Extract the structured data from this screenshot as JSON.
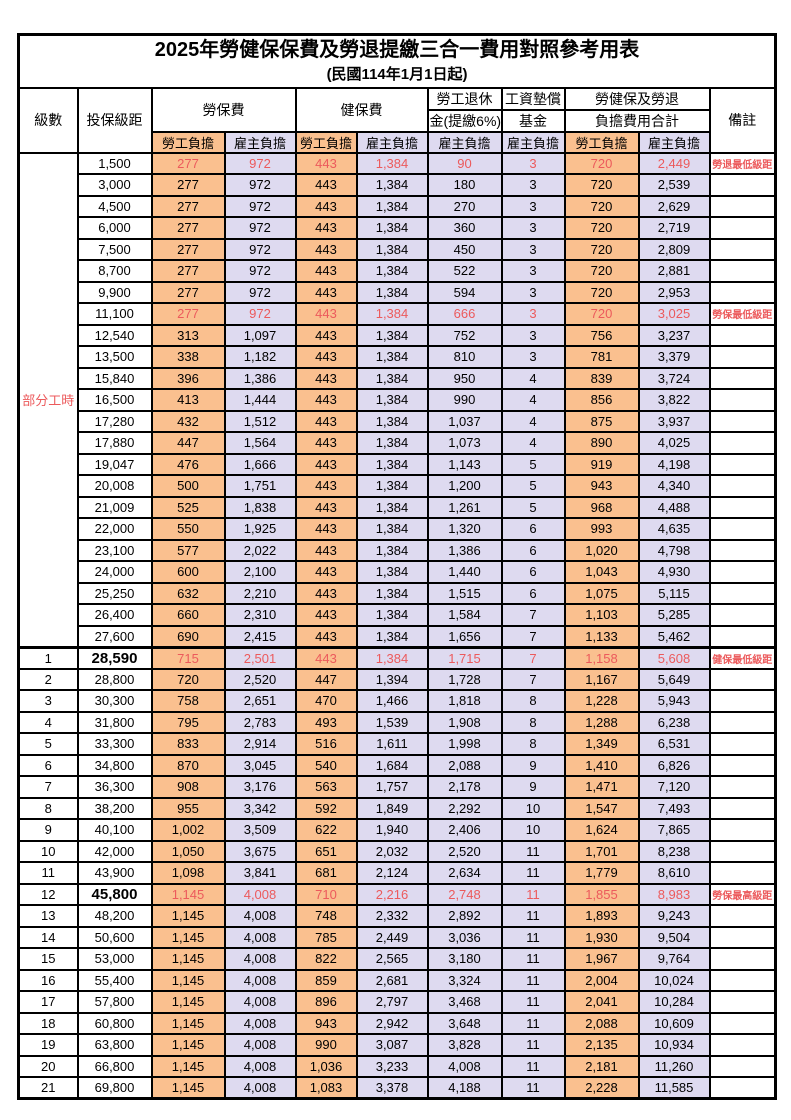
{
  "title": "2025年勞健保保費及勞退提繳三合一費用對照參考用表",
  "subtitle": "(民國114年1月1日起)",
  "header": {
    "level": "級數",
    "bracket": "投保級距",
    "labor_ins": "勞保費",
    "health_ins": "健保費",
    "pension_line1": "勞工退休",
    "pension_line2": "金(提繳6%)",
    "wage_fund_line1": "工資墊償",
    "wage_fund_line2": "基金",
    "total_line1": "勞健保及勞退",
    "total_line2": "負擔費用合計",
    "employee": "勞工負擔",
    "employer": "雇主負擔",
    "remarks": "備註"
  },
  "part_time_label": "部分工時",
  "colors": {
    "orange": "#FAC08F",
    "lavender": "#DEDAF0",
    "red": "#EC5A5C",
    "border": "#000000"
  },
  "rows": [
    {
      "level": "",
      "bracket": "1,500",
      "v": [
        "277",
        "972",
        "443",
        "1,384",
        "90",
        "3",
        "720",
        "2,449"
      ],
      "note": "勞退最低級距",
      "red": true
    },
    {
      "level": "",
      "bracket": "3,000",
      "v": [
        "277",
        "972",
        "443",
        "1,384",
        "180",
        "3",
        "720",
        "2,539"
      ],
      "note": ""
    },
    {
      "level": "",
      "bracket": "4,500",
      "v": [
        "277",
        "972",
        "443",
        "1,384",
        "270",
        "3",
        "720",
        "2,629"
      ],
      "note": ""
    },
    {
      "level": "",
      "bracket": "6,000",
      "v": [
        "277",
        "972",
        "443",
        "1,384",
        "360",
        "3",
        "720",
        "2,719"
      ],
      "note": ""
    },
    {
      "level": "",
      "bracket": "7,500",
      "v": [
        "277",
        "972",
        "443",
        "1,384",
        "450",
        "3",
        "720",
        "2,809"
      ],
      "note": ""
    },
    {
      "level": "",
      "bracket": "8,700",
      "v": [
        "277",
        "972",
        "443",
        "1,384",
        "522",
        "3",
        "720",
        "2,881"
      ],
      "note": ""
    },
    {
      "level": "",
      "bracket": "9,900",
      "v": [
        "277",
        "972",
        "443",
        "1,384",
        "594",
        "3",
        "720",
        "2,953"
      ],
      "note": ""
    },
    {
      "level": "",
      "bracket": "11,100",
      "v": [
        "277",
        "972",
        "443",
        "1,384",
        "666",
        "3",
        "720",
        "3,025"
      ],
      "note": "勞保最低級距",
      "red": true
    },
    {
      "level": "",
      "bracket": "12,540",
      "v": [
        "313",
        "1,097",
        "443",
        "1,384",
        "752",
        "3",
        "756",
        "3,237"
      ],
      "note": ""
    },
    {
      "level": "",
      "bracket": "13,500",
      "v": [
        "338",
        "1,182",
        "443",
        "1,384",
        "810",
        "3",
        "781",
        "3,379"
      ],
      "note": ""
    },
    {
      "level": "",
      "bracket": "15,840",
      "v": [
        "396",
        "1,386",
        "443",
        "1,384",
        "950",
        "4",
        "839",
        "3,724"
      ],
      "note": ""
    },
    {
      "level": "",
      "bracket": "16,500",
      "v": [
        "413",
        "1,444",
        "443",
        "1,384",
        "990",
        "4",
        "856",
        "3,822"
      ],
      "note": ""
    },
    {
      "level": "",
      "bracket": "17,280",
      "v": [
        "432",
        "1,512",
        "443",
        "1,384",
        "1,037",
        "4",
        "875",
        "3,937"
      ],
      "note": ""
    },
    {
      "level": "",
      "bracket": "17,880",
      "v": [
        "447",
        "1,564",
        "443",
        "1,384",
        "1,073",
        "4",
        "890",
        "4,025"
      ],
      "note": ""
    },
    {
      "level": "",
      "bracket": "19,047",
      "v": [
        "476",
        "1,666",
        "443",
        "1,384",
        "1,143",
        "5",
        "919",
        "4,198"
      ],
      "note": ""
    },
    {
      "level": "",
      "bracket": "20,008",
      "v": [
        "500",
        "1,751",
        "443",
        "1,384",
        "1,200",
        "5",
        "943",
        "4,340"
      ],
      "note": ""
    },
    {
      "level": "",
      "bracket": "21,009",
      "v": [
        "525",
        "1,838",
        "443",
        "1,384",
        "1,261",
        "5",
        "968",
        "4,488"
      ],
      "note": ""
    },
    {
      "level": "",
      "bracket": "22,000",
      "v": [
        "550",
        "1,925",
        "443",
        "1,384",
        "1,320",
        "6",
        "993",
        "4,635"
      ],
      "note": ""
    },
    {
      "level": "",
      "bracket": "23,100",
      "v": [
        "577",
        "2,022",
        "443",
        "1,384",
        "1,386",
        "6",
        "1,020",
        "4,798"
      ],
      "note": ""
    },
    {
      "level": "",
      "bracket": "24,000",
      "v": [
        "600",
        "2,100",
        "443",
        "1,384",
        "1,440",
        "6",
        "1,043",
        "4,930"
      ],
      "note": ""
    },
    {
      "level": "",
      "bracket": "25,250",
      "v": [
        "632",
        "2,210",
        "443",
        "1,384",
        "1,515",
        "6",
        "1,075",
        "5,115"
      ],
      "note": ""
    },
    {
      "level": "",
      "bracket": "26,400",
      "v": [
        "660",
        "2,310",
        "443",
        "1,384",
        "1,584",
        "7",
        "1,103",
        "5,285"
      ],
      "note": ""
    },
    {
      "level": "",
      "bracket": "27,600",
      "v": [
        "690",
        "2,415",
        "443",
        "1,384",
        "1,656",
        "7",
        "1,133",
        "5,462"
      ],
      "note": ""
    },
    {
      "level": "1",
      "bracket": "28,590",
      "v": [
        "715",
        "2,501",
        "443",
        "1,384",
        "1,715",
        "7",
        "1,158",
        "5,608"
      ],
      "note": "健保最低級距",
      "red": true,
      "bold": true,
      "sep": true
    },
    {
      "level": "2",
      "bracket": "28,800",
      "v": [
        "720",
        "2,520",
        "447",
        "1,394",
        "1,728",
        "7",
        "1,167",
        "5,649"
      ],
      "note": ""
    },
    {
      "level": "3",
      "bracket": "30,300",
      "v": [
        "758",
        "2,651",
        "470",
        "1,466",
        "1,818",
        "8",
        "1,228",
        "5,943"
      ],
      "note": ""
    },
    {
      "level": "4",
      "bracket": "31,800",
      "v": [
        "795",
        "2,783",
        "493",
        "1,539",
        "1,908",
        "8",
        "1,288",
        "6,238"
      ],
      "note": ""
    },
    {
      "level": "5",
      "bracket": "33,300",
      "v": [
        "833",
        "2,914",
        "516",
        "1,611",
        "1,998",
        "8",
        "1,349",
        "6,531"
      ],
      "note": ""
    },
    {
      "level": "6",
      "bracket": "34,800",
      "v": [
        "870",
        "3,045",
        "540",
        "1,684",
        "2,088",
        "9",
        "1,410",
        "6,826"
      ],
      "note": ""
    },
    {
      "level": "7",
      "bracket": "36,300",
      "v": [
        "908",
        "3,176",
        "563",
        "1,757",
        "2,178",
        "9",
        "1,471",
        "7,120"
      ],
      "note": ""
    },
    {
      "level": "8",
      "bracket": "38,200",
      "v": [
        "955",
        "3,342",
        "592",
        "1,849",
        "2,292",
        "10",
        "1,547",
        "7,493"
      ],
      "note": ""
    },
    {
      "level": "9",
      "bracket": "40,100",
      "v": [
        "1,002",
        "3,509",
        "622",
        "1,940",
        "2,406",
        "10",
        "1,624",
        "7,865"
      ],
      "note": ""
    },
    {
      "level": "10",
      "bracket": "42,000",
      "v": [
        "1,050",
        "3,675",
        "651",
        "2,032",
        "2,520",
        "11",
        "1,701",
        "8,238"
      ],
      "note": ""
    },
    {
      "level": "11",
      "bracket": "43,900",
      "v": [
        "1,098",
        "3,841",
        "681",
        "2,124",
        "2,634",
        "11",
        "1,779",
        "8,610"
      ],
      "note": ""
    },
    {
      "level": "12",
      "bracket": "45,800",
      "v": [
        "1,145",
        "4,008",
        "710",
        "2,216",
        "2,748",
        "11",
        "1,855",
        "8,983"
      ],
      "note": "勞保最高級距",
      "red": true,
      "bold": true
    },
    {
      "level": "13",
      "bracket": "48,200",
      "v": [
        "1,145",
        "4,008",
        "748",
        "2,332",
        "2,892",
        "11",
        "1,893",
        "9,243"
      ],
      "note": ""
    },
    {
      "level": "14",
      "bracket": "50,600",
      "v": [
        "1,145",
        "4,008",
        "785",
        "2,449",
        "3,036",
        "11",
        "1,930",
        "9,504"
      ],
      "note": ""
    },
    {
      "level": "15",
      "bracket": "53,000",
      "v": [
        "1,145",
        "4,008",
        "822",
        "2,565",
        "3,180",
        "11",
        "1,967",
        "9,764"
      ],
      "note": ""
    },
    {
      "level": "16",
      "bracket": "55,400",
      "v": [
        "1,145",
        "4,008",
        "859",
        "2,681",
        "3,324",
        "11",
        "2,004",
        "10,024"
      ],
      "note": ""
    },
    {
      "level": "17",
      "bracket": "57,800",
      "v": [
        "1,145",
        "4,008",
        "896",
        "2,797",
        "3,468",
        "11",
        "2,041",
        "10,284"
      ],
      "note": ""
    },
    {
      "level": "18",
      "bracket": "60,800",
      "v": [
        "1,145",
        "4,008",
        "943",
        "2,942",
        "3,648",
        "11",
        "2,088",
        "10,609"
      ],
      "note": ""
    },
    {
      "level": "19",
      "bracket": "63,800",
      "v": [
        "1,145",
        "4,008",
        "990",
        "3,087",
        "3,828",
        "11",
        "2,135",
        "10,934"
      ],
      "note": ""
    },
    {
      "level": "20",
      "bracket": "66,800",
      "v": [
        "1,145",
        "4,008",
        "1,036",
        "3,233",
        "4,008",
        "11",
        "2,181",
        "11,260"
      ],
      "note": ""
    },
    {
      "level": "21",
      "bracket": "69,800",
      "v": [
        "1,145",
        "4,008",
        "1,083",
        "3,378",
        "4,188",
        "11",
        "2,228",
        "11,585"
      ],
      "note": ""
    }
  ]
}
